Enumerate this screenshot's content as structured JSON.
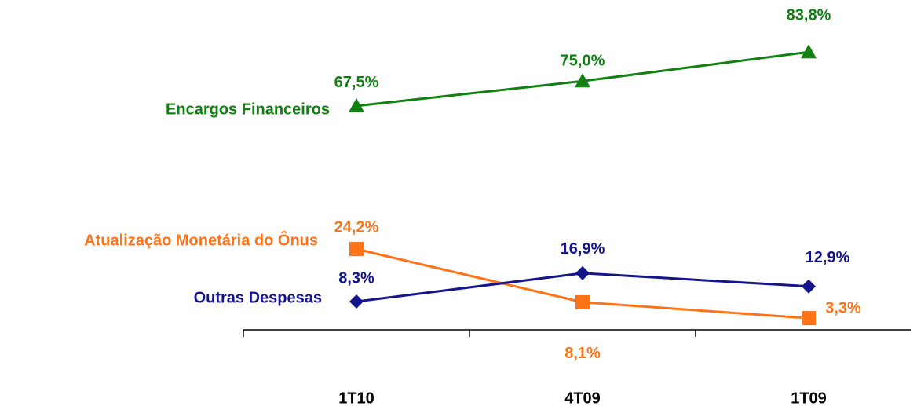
{
  "chart_data": {
    "type": "line",
    "categories": [
      "1T10",
      "4T09",
      "1T09"
    ],
    "ylim": [
      0,
      100
    ],
    "series": [
      {
        "name": "Encargos Financeiros",
        "color": "#108010",
        "marker": "triangle",
        "values": [
          67.5,
          75.0,
          83.8
        ],
        "value_labels": [
          "67,5%",
          "75,0%",
          "83,8%"
        ]
      },
      {
        "name": "Atualização Monetária do Ônus",
        "color": "#ff7318",
        "marker": "square",
        "values": [
          24.2,
          8.1,
          3.3
        ],
        "value_labels": [
          "24,2%",
          "8,1%",
          "3,3%"
        ]
      },
      {
        "name": "Outras Despesas",
        "color": "#14148c",
        "marker": "diamond",
        "values": [
          8.3,
          16.9,
          12.9
        ],
        "value_labels": [
          "8,3%",
          "16,9%",
          "12,9%"
        ]
      }
    ]
  }
}
